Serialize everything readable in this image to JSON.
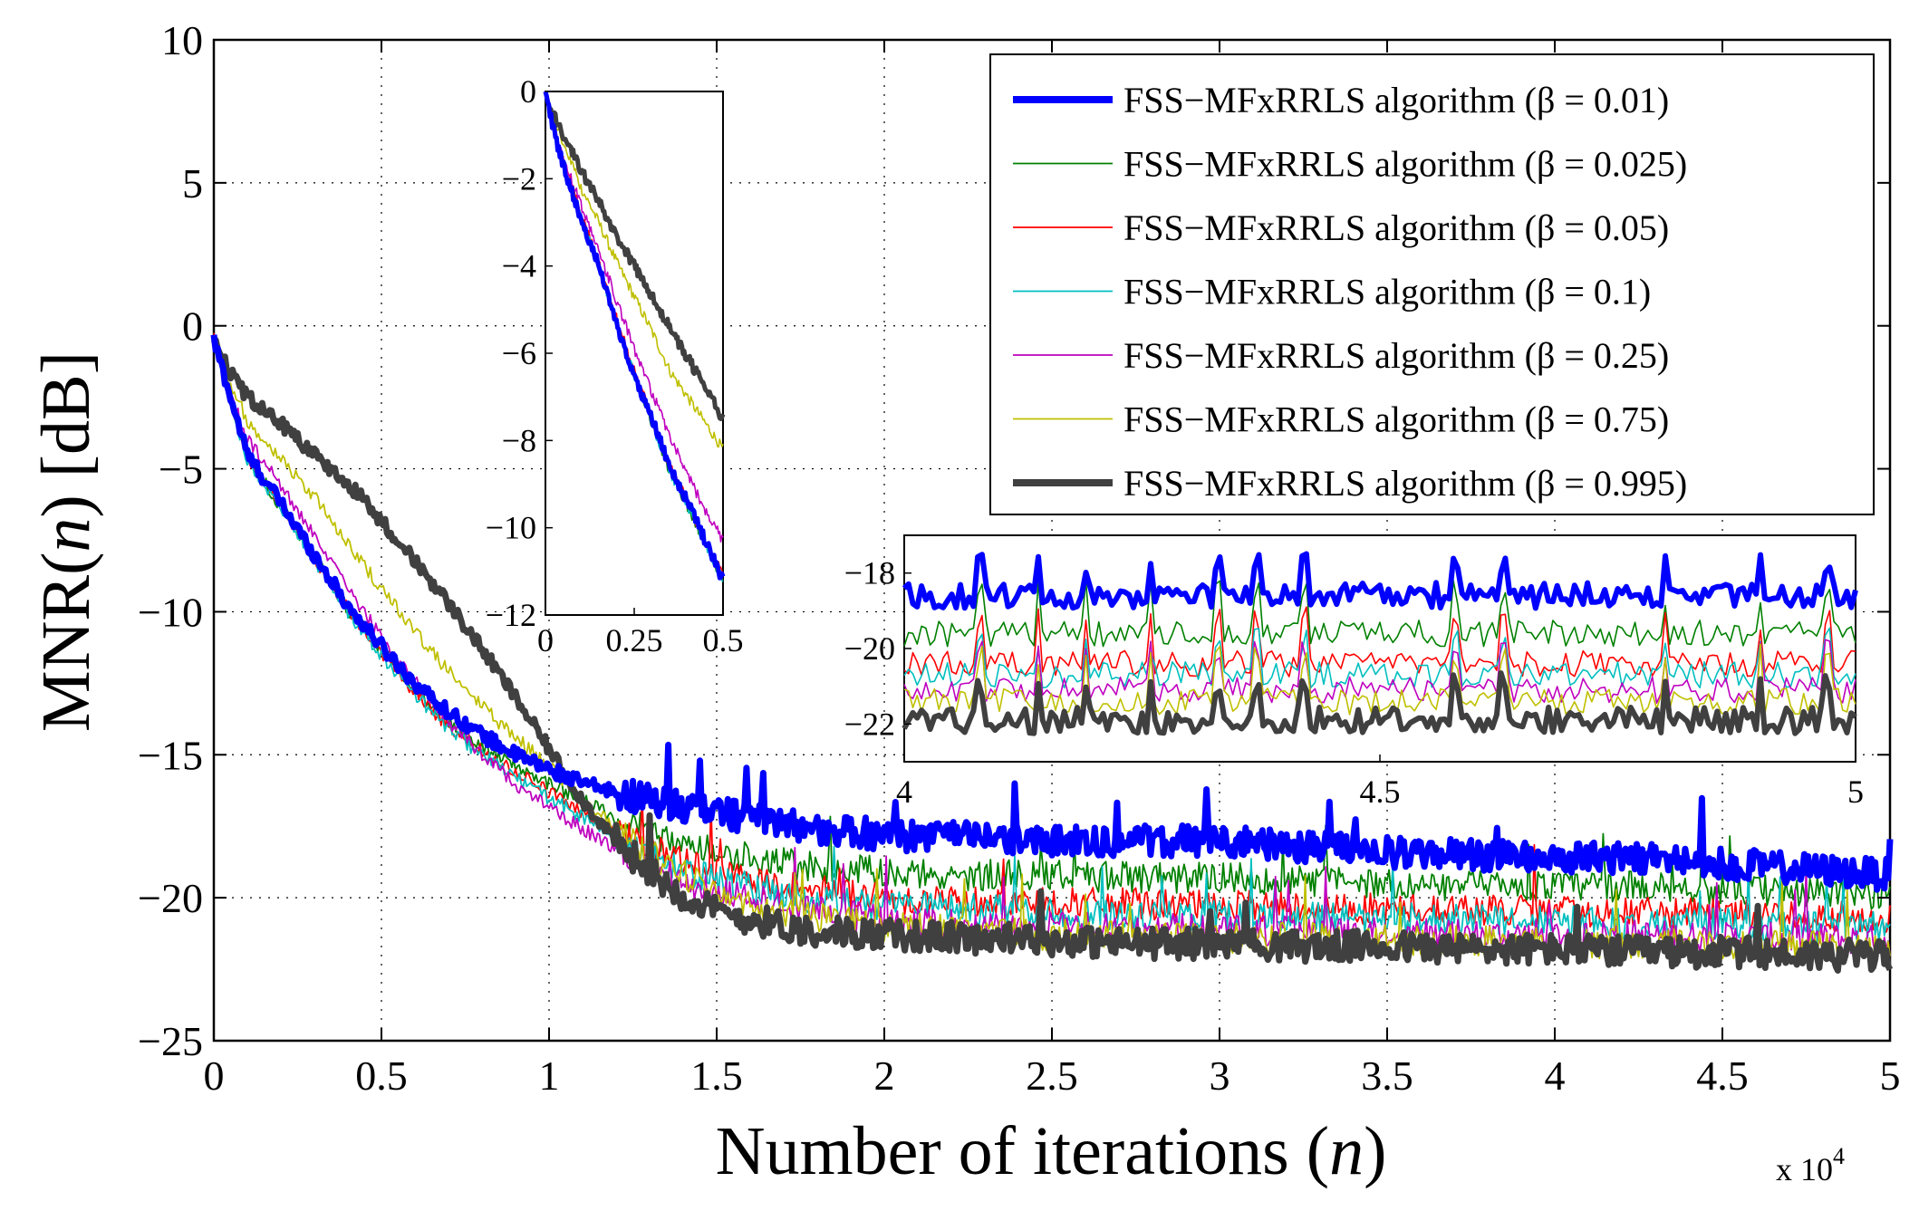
{
  "chart_data": [
    {
      "type": "line",
      "role": "main",
      "xlabel": "Number of iterations",
      "xlabel_var": "n",
      "ylabel": "MNR(",
      "ylabel_var": "n",
      "ylabel_suffix": ") [dB]",
      "x_exponent_label": "x 10",
      "x_exponent_power": "4",
      "xlim": [
        0,
        5
      ],
      "ylim": [
        -25,
        10
      ],
      "grid": true,
      "legend_position": "top-right",
      "xticks": [
        0,
        0.5,
        1,
        1.5,
        2,
        2.5,
        3,
        3.5,
        4,
        4.5,
        5
      ],
      "xtick_labels": [
        "0",
        "0.5",
        "1",
        "1.5",
        "2",
        "2.5",
        "3",
        "3.5",
        "4",
        "4.5",
        "5"
      ],
      "yticks": [
        10,
        5,
        0,
        -5,
        -10,
        -15,
        -20,
        -25
      ],
      "ytick_labels": [
        "10",
        "5",
        "0",
        "−5",
        "−10",
        "−15",
        "−20",
        "−25"
      ],
      "x": [
        0,
        0.05,
        0.1,
        0.2,
        0.3,
        0.4,
        0.5,
        0.6,
        0.7,
        0.8,
        0.9,
        1.0,
        1.1,
        1.2,
        1.3,
        1.4,
        1.5,
        1.75,
        2.0,
        2.25,
        2.5,
        2.75,
        3.0,
        3.25,
        3.5,
        3.75,
        4.0,
        4.25,
        4.5,
        4.75,
        5.0
      ],
      "series": [
        {
          "name": "FSS−MFxRRLS algorithm (β = 0.01)",
          "color": "#0000ff",
          "width": 7,
          "values": [
            -0.5,
            -2.5,
            -4.5,
            -6.2,
            -8.0,
            -9.8,
            -11.2,
            -12.5,
            -13.5,
            -14.3,
            -15.0,
            -15.5,
            -16.0,
            -16.3,
            -16.6,
            -16.8,
            -17.0,
            -17.5,
            -17.8,
            -17.9,
            -18.0,
            -18.0,
            -18.0,
            -18.2,
            -18.4,
            -18.5,
            -18.6,
            -18.6,
            -18.8,
            -19.0,
            -19.2
          ]
        },
        {
          "name": "FSS−MFxRRLS algorithm (β = 0.025)",
          "color": "#008000",
          "width": 1.8,
          "values": [
            -0.5,
            -2.6,
            -4.6,
            -6.3,
            -8.1,
            -9.9,
            -11.3,
            -12.7,
            -13.8,
            -14.7,
            -15.4,
            -16.0,
            -16.6,
            -17.2,
            -17.7,
            -18.1,
            -18.4,
            -18.9,
            -19.1,
            -19.2,
            -19.2,
            -19.3,
            -19.3,
            -19.4,
            -19.5,
            -19.6,
            -19.6,
            -19.6,
            -19.7,
            -19.8,
            -19.9
          ]
        },
        {
          "name": "FSS−MFxRRLS algorithm (β = 0.05)",
          "color": "#ff0000",
          "width": 1.8,
          "values": [
            -0.5,
            -2.6,
            -4.6,
            -6.3,
            -8.1,
            -9.9,
            -11.4,
            -12.8,
            -14.0,
            -14.9,
            -15.6,
            -16.3,
            -17.0,
            -17.6,
            -18.2,
            -18.7,
            -19.1,
            -19.7,
            -20.0,
            -20.1,
            -20.2,
            -20.2,
            -20.3,
            -20.3,
            -20.4,
            -20.4,
            -20.5,
            -20.5,
            -20.6,
            -20.6,
            -20.7
          ]
        },
        {
          "name": "FSS−MFxRRLS algorithm (β = 0.1)",
          "color": "#00bfbf",
          "width": 1.8,
          "values": [
            -0.5,
            -2.6,
            -4.7,
            -6.4,
            -8.2,
            -10.0,
            -11.5,
            -12.9,
            -14.1,
            -15.0,
            -15.8,
            -16.5,
            -17.2,
            -17.9,
            -18.5,
            -19.0,
            -19.4,
            -20.0,
            -20.3,
            -20.4,
            -20.5,
            -20.6,
            -20.6,
            -20.7,
            -20.7,
            -20.8,
            -20.8,
            -20.9,
            -20.9,
            -21.0,
            -21.0
          ]
        },
        {
          "name": "FSS−MFxRRLS algorithm (β = 0.25)",
          "color": "#bf00bf",
          "width": 1.8,
          "values": [
            -0.5,
            -2.4,
            -4.0,
            -5.6,
            -7.4,
            -9.2,
            -10.9,
            -12.4,
            -13.8,
            -15.0,
            -16.0,
            -16.8,
            -17.6,
            -18.3,
            -18.9,
            -19.4,
            -19.8,
            -20.4,
            -20.8,
            -21.0,
            -21.0,
            -21.1,
            -21.1,
            -21.2,
            -21.2,
            -21.3,
            -21.3,
            -21.3,
            -21.4,
            -21.4,
            -21.5
          ]
        },
        {
          "name": "FSS−MFxRRLS algorithm (β = 0.75)",
          "color": "#bfbf00",
          "width": 1.8,
          "values": [
            -0.5,
            -2.0,
            -3.3,
            -4.6,
            -6.0,
            -7.6,
            -9.2,
            -10.7,
            -12.1,
            -13.3,
            -14.4,
            -15.4,
            -16.6,
            -17.6,
            -18.5,
            -19.2,
            -19.8,
            -20.6,
            -21.0,
            -21.2,
            -21.3,
            -21.3,
            -21.4,
            -21.4,
            -21.5,
            -21.5,
            -21.6,
            -21.6,
            -21.7,
            -21.7,
            -21.8
          ]
        },
        {
          "name": "FSS−MFxRRLS algorithm (β = 0.995)",
          "color": "#404040",
          "width": 7,
          "values": [
            -0.5,
            -1.6,
            -2.5,
            -3.4,
            -4.5,
            -5.5,
            -6.8,
            -8.2,
            -9.7,
            -11.3,
            -13.0,
            -14.8,
            -16.6,
            -18.0,
            -19.1,
            -19.9,
            -20.5,
            -21.1,
            -21.3,
            -21.4,
            -21.5,
            -21.6,
            -21.6,
            -21.7,
            -21.7,
            -21.8,
            -21.8,
            -21.9,
            -21.9,
            -22.0,
            -22.0
          ]
        }
      ]
    },
    {
      "type": "line",
      "role": "inset-initial",
      "xlim": [
        0,
        0.5
      ],
      "ylim": [
        -12,
        0
      ],
      "xticks": [
        0,
        0.25,
        0.5
      ],
      "xtick_labels": [
        "0",
        "0.25",
        "0.5"
      ],
      "yticks": [
        0,
        -2,
        -4,
        -6,
        -8,
        -10,
        -12
      ],
      "ytick_labels": [
        "0",
        "−2",
        "−4",
        "−6",
        "−8",
        "−10",
        "−12"
      ],
      "x": [
        0,
        0.02,
        0.05,
        0.1,
        0.15,
        0.2,
        0.25,
        0.3,
        0.35,
        0.4,
        0.45,
        0.5
      ],
      "series": [
        {
          "name": "β = 0.01",
          "values": [
            0,
            -0.8,
            -1.7,
            -2.9,
            -4.0,
            -5.3,
            -6.5,
            -7.5,
            -8.6,
            -9.4,
            -10.3,
            -11.2
          ]
        },
        {
          "name": "β = 0.025",
          "values": [
            0,
            -0.8,
            -1.7,
            -2.9,
            -4.0,
            -5.3,
            -6.5,
            -7.6,
            -8.7,
            -9.5,
            -10.4,
            -11.2
          ]
        },
        {
          "name": "β = 0.05",
          "values": [
            0,
            -0.8,
            -1.6,
            -2.8,
            -3.9,
            -5.2,
            -6.4,
            -7.5,
            -8.6,
            -9.4,
            -10.3,
            -11.1
          ]
        },
        {
          "name": "β = 0.1",
          "values": [
            0,
            -0.8,
            -1.7,
            -2.9,
            -4.0,
            -5.3,
            -6.5,
            -7.6,
            -8.7,
            -9.5,
            -10.4,
            -11.2
          ]
        },
        {
          "name": "β = 0.25",
          "values": [
            0,
            -0.7,
            -1.5,
            -2.6,
            -3.6,
            -4.8,
            -5.9,
            -6.9,
            -7.9,
            -8.8,
            -9.6,
            -10.3
          ]
        },
        {
          "name": "β = 0.75",
          "values": [
            0,
            -0.6,
            -1.2,
            -2.2,
            -3.0,
            -3.9,
            -4.7,
            -5.5,
            -6.4,
            -7.0,
            -7.6,
            -8.2
          ]
        },
        {
          "name": "β = 0.995",
          "values": [
            0,
            -0.5,
            -1.0,
            -1.8,
            -2.5,
            -3.3,
            -4.0,
            -4.7,
            -5.4,
            -6.1,
            -6.8,
            -7.5
          ]
        }
      ]
    },
    {
      "type": "line",
      "role": "inset-steady-state",
      "xlim": [
        4,
        5
      ],
      "ylim": [
        -23,
        -17
      ],
      "xticks": [
        4,
        4.5,
        5
      ],
      "xtick_labels": [
        "4",
        "4.5",
        "5"
      ],
      "yticks": [
        -18,
        -20,
        -22
      ],
      "ytick_labels": [
        "−18",
        "−20",
        "−22"
      ],
      "series": [
        {
          "name": "β = 0.01",
          "mean": -18.6
        },
        {
          "name": "β = 0.025",
          "mean": -19.6
        },
        {
          "name": "β = 0.05",
          "mean": -20.4
        },
        {
          "name": "β = 0.1",
          "mean": -20.7
        },
        {
          "name": "β = 0.25",
          "mean": -21.1
        },
        {
          "name": "β = 0.75",
          "mean": -21.4
        },
        {
          "name": "β = 0.995",
          "mean": -21.9
        }
      ]
    }
  ]
}
